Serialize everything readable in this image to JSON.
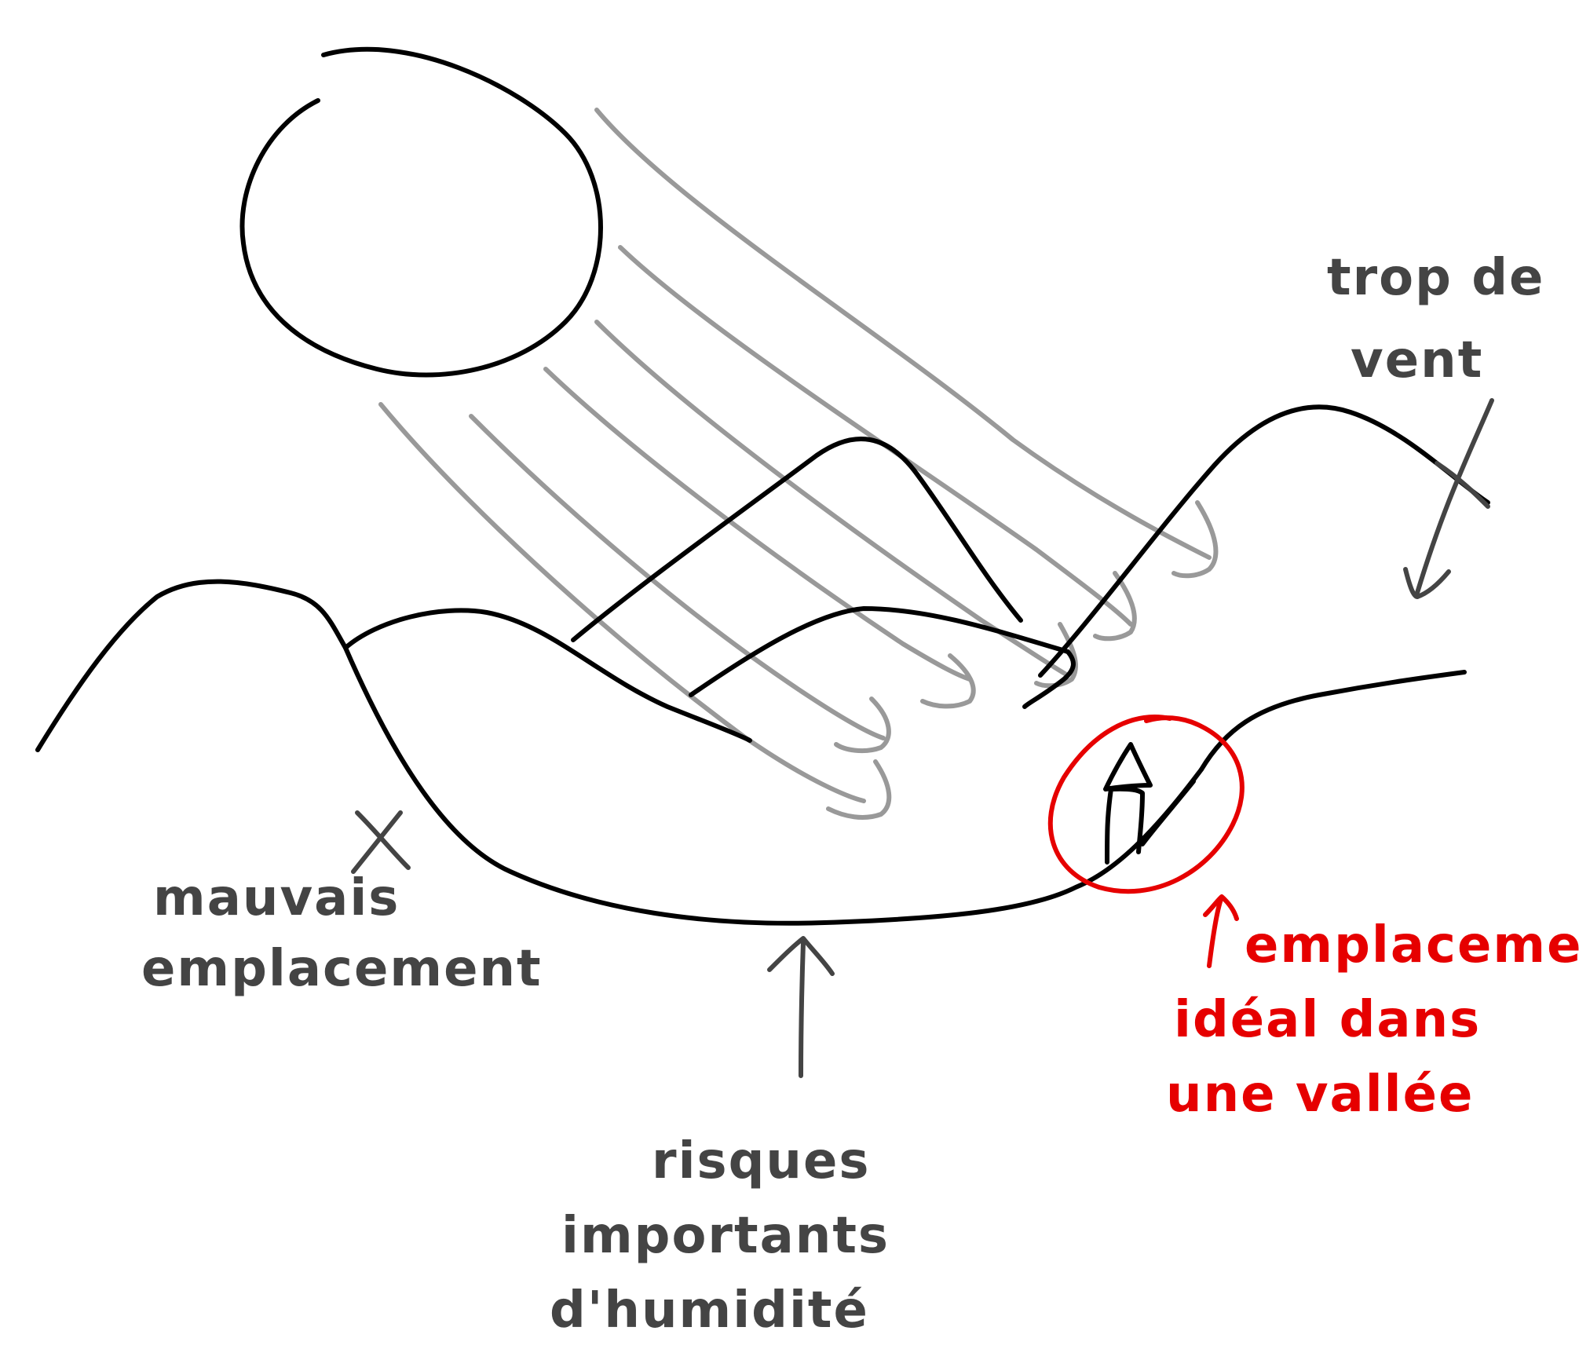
{
  "colors": {
    "ink": "#000000",
    "rays": "#999999",
    "annotation": "#444444",
    "highlight": "#e60000"
  },
  "labels": {
    "wind": [
      "trop de",
      "vent"
    ],
    "bad_location": [
      "mauvais",
      "emplacement"
    ],
    "humidity": [
      "risques",
      "importants",
      "d'humidité"
    ],
    "ideal_location": [
      "emplacement",
      "idéal dans",
      "une vallée"
    ]
  },
  "icons": {
    "sun": "sun-circle",
    "house": "house-icon",
    "cross": "x-mark"
  }
}
